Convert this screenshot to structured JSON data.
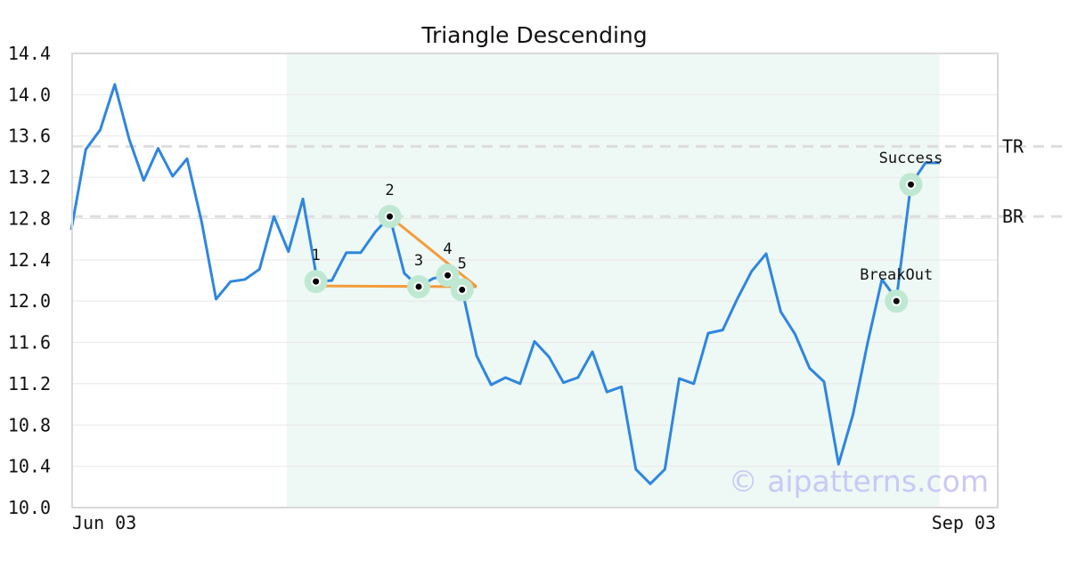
{
  "chart_data": {
    "type": "line",
    "title": "Triangle Descending",
    "watermark": "© aipatterns.com",
    "x_labels": [
      "Jun 03",
      "Sep 03"
    ],
    "y_ticks": [
      "10.0",
      "10.4",
      "10.8",
      "11.2",
      "11.6",
      "12.0",
      "12.4",
      "12.8",
      "13.2",
      "13.6",
      "14.0",
      "14.4"
    ],
    "ylim": [
      10.0,
      14.4
    ],
    "grid": true,
    "colors": {
      "line": "#2e86de",
      "pattern": "#f39c3c",
      "highlight": "#eef8f4",
      "marker_ring": "#bfe8d2",
      "level": "#dddddd"
    },
    "series": [
      {
        "values": [
          12.69,
          13.47,
          13.66,
          14.1,
          13.57,
          13.17,
          13.48,
          13.21,
          13.38,
          12.77,
          12.02,
          12.19,
          12.21,
          12.31,
          12.82,
          12.48,
          12.99,
          12.19,
          12.2,
          12.47,
          12.47,
          12.67,
          12.82,
          12.27,
          12.14,
          12.22,
          12.25,
          12.11,
          11.47,
          11.19,
          11.26,
          11.2,
          11.61,
          11.46,
          11.21,
          11.26,
          11.51,
          11.12,
          11.17,
          10.37,
          10.23,
          10.37,
          11.25,
          11.2,
          11.69,
          11.72,
          12.02,
          12.29,
          12.46,
          11.9,
          11.68,
          11.35,
          11.22,
          10.42,
          10.9,
          11.59,
          12.21,
          12.02,
          13.13,
          13.34,
          13.34
        ]
      }
    ],
    "highlight_range": [
      14,
      59
    ],
    "levels": [
      {
        "label": "TR",
        "value": 13.5
      },
      {
        "label": "BR",
        "value": 12.82
      }
    ],
    "pattern_points": [
      {
        "label": "1",
        "index": 16.9,
        "value": 12.19
      },
      {
        "label": "2",
        "index": 22,
        "value": 12.82
      },
      {
        "label": "3",
        "index": 24,
        "value": 12.14
      },
      {
        "label": "4",
        "index": 26,
        "value": 12.25
      },
      {
        "label": "5",
        "index": 27,
        "value": 12.11
      }
    ],
    "triangle": {
      "apex": {
        "index": 28,
        "value": 12.14
      }
    },
    "events": [
      {
        "label": "BreakOut",
        "index": 57,
        "value": 12.0
      },
      {
        "label": "Success",
        "index": 58,
        "value": 13.13
      }
    ]
  }
}
